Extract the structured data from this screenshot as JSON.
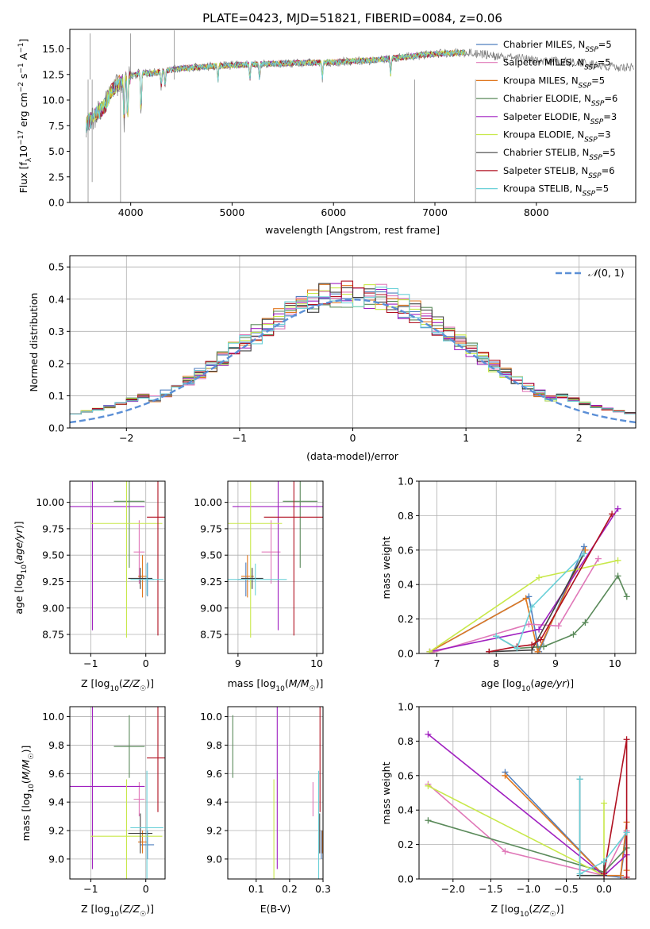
{
  "colors": {
    "Chabrier MILES": "#4f7fbf",
    "Salpeter MILES": "#e078b8",
    "Kroupa MILES": "#e07820",
    "Chabrier ELODIE": "#5a8a5a",
    "Salpeter ELODIE": "#a020c0",
    "Kroupa ELODIE": "#c8e84a",
    "Chabrier STELIB": "#404040",
    "Salpeter STELIB": "#b01020",
    "Kroupa STELIB": "#6ad0d8"
  },
  "chart_data": [
    {
      "id": "spectrum",
      "type": "line",
      "title": "PLATE=0423, MJD=51821, FIBERID=0084, z=0.06",
      "xlabel": "wavelength [Angstrom, rest frame]",
      "ylabel_parts": [
        "Flux [f",
        "λ",
        "10",
        "−17",
        " erg cm",
        "−2",
        " s",
        "−1",
        " A",
        "−1",
        "]"
      ],
      "xlim": [
        3400,
        8980
      ],
      "ylim": [
        0,
        16.9
      ],
      "xticks": [
        "4000",
        "5000",
        "6000",
        "7000",
        "8000"
      ],
      "yticks": [
        "0.0",
        "2.5",
        "5.0",
        "7.5",
        "10.0",
        "12.5",
        "15.0"
      ],
      "legend_position": "right",
      "series": [
        {
          "name": "Chabrier MILES",
          "nssp": "5"
        },
        {
          "name": "Salpeter MILES",
          "nssp": "5"
        },
        {
          "name": "Kroupa MILES",
          "nssp": "5"
        },
        {
          "name": "Chabrier ELODIE",
          "nssp": "6"
        },
        {
          "name": "Salpeter ELODIE",
          "nssp": "3"
        },
        {
          "name": "Kroupa ELODIE",
          "nssp": "3"
        },
        {
          "name": "Chabrier STELIB",
          "nssp": "5"
        },
        {
          "name": "Salpeter STELIB",
          "nssp": "6"
        },
        {
          "name": "Kroupa STELIB",
          "nssp": "5"
        }
      ],
      "continuum": {
        "x": [
          3550,
          3650,
          3750,
          3800,
          3900,
          4000,
          4100,
          4200,
          4300,
          4500,
          4800,
          5200,
          5600,
          6000,
          6400,
          6800,
          7000,
          7200,
          7400,
          7600,
          8000,
          8400,
          8800
        ],
        "y": [
          7.5,
          8.5,
          9.5,
          10.8,
          11.8,
          12.3,
          12.7,
          12.6,
          12.8,
          13.1,
          13.3,
          13.5,
          13.6,
          13.7,
          13.9,
          14.3,
          14.5,
          14.6,
          14.6,
          14.3,
          13.9,
          13.7,
          13.2
        ]
      }
    },
    {
      "id": "residuals",
      "type": "step",
      "xlabel": "(data-model)/error",
      "ylabel": "Normed distribution",
      "xlim": [
        -2.5,
        2.5
      ],
      "ylim": [
        0,
        0.535
      ],
      "xticks": [
        "−2",
        "−1",
        "0",
        "1",
        "2"
      ],
      "yticks": [
        "0.0",
        "0.1",
        "0.2",
        "0.3",
        "0.4",
        "0.5"
      ],
      "legend": "N(0,1)",
      "bin_width": 0.1,
      "normal_curve": {
        "mu": 0,
        "sigma": 1
      },
      "grid": true
    },
    {
      "id": "age-Z",
      "type": "errorbar",
      "xlabel": "Z [log10(Z/Z☉)]",
      "ylabel": "age  [log10(age/yr)]",
      "xlim": [
        -1.38,
        0.35
      ],
      "ylim": [
        8.57,
        10.2
      ],
      "xticks": [
        -1,
        0
      ],
      "yticks": [
        8.75,
        9.0,
        9.25,
        9.5,
        9.75,
        10.0
      ],
      "points": [
        {
          "series": "Chabrier MILES",
          "x": 0.03,
          "xe": 0.12,
          "y": 9.27,
          "ye": 0.16
        },
        {
          "series": "Salpeter MILES",
          "x": -0.12,
          "xe": 0.1,
          "y": 9.53,
          "ye": 0.3
        },
        {
          "series": "Kroupa MILES",
          "x": -0.06,
          "xe": 0.08,
          "y": 9.3,
          "ye": 0.2
        },
        {
          "series": "Chabrier ELODIE",
          "x": -0.3,
          "xe": 0.28,
          "y": 10.01,
          "ye": 0.63
        },
        {
          "series": "Salpeter ELODIE",
          "x": -0.97,
          "xe": 0.95,
          "y": 9.96,
          "ye": 1.17
        },
        {
          "series": "Kroupa ELODIE",
          "x": -0.35,
          "xe": 0.65,
          "y": 9.8,
          "ye": 1.08
        },
        {
          "series": "Chabrier STELIB",
          "x": -0.1,
          "xe": 0.22,
          "y": 9.28,
          "ye": 0.1
        },
        {
          "series": "Salpeter STELIB",
          "x": 0.22,
          "xe": 0.2,
          "y": 9.86,
          "ye": 1.12
        },
        {
          "series": "Kroupa STELIB",
          "x": 0.02,
          "xe": 0.3,
          "y": 9.27,
          "ye": 0.15
        }
      ]
    },
    {
      "id": "age-mass",
      "type": "errorbar",
      "xlabel": "mass [log10(M/M☉)]",
      "ylabel": "",
      "xlim": [
        8.87,
        10.08
      ],
      "ylim": [
        8.57,
        10.2
      ],
      "xticks": [
        9,
        10
      ],
      "yticks": [
        8.75,
        9.0,
        9.25,
        9.5,
        9.75,
        10.0
      ],
      "points": [
        {
          "series": "Chabrier MILES",
          "x": 9.1,
          "xe": 0.1,
          "y": 9.27,
          "ye": 0.16
        },
        {
          "series": "Salpeter MILES",
          "x": 9.42,
          "xe": 0.12,
          "y": 9.53,
          "ye": 0.3
        },
        {
          "series": "Kroupa MILES",
          "x": 9.12,
          "xe": 0.08,
          "y": 9.3,
          "ye": 0.2
        },
        {
          "series": "Chabrier ELODIE",
          "x": 9.79,
          "xe": 0.22,
          "y": 10.01,
          "ye": 0.63
        },
        {
          "series": "Salpeter ELODIE",
          "x": 9.51,
          "xe": 0.58,
          "y": 9.96,
          "ye": 1.17
        },
        {
          "series": "Kroupa ELODIE",
          "x": 9.16,
          "xe": 0.4,
          "y": 9.8,
          "ye": 1.08
        },
        {
          "series": "Chabrier STELIB",
          "x": 9.18,
          "xe": 0.14,
          "y": 9.28,
          "ye": 0.1
        },
        {
          "series": "Salpeter STELIB",
          "x": 9.71,
          "xe": 0.38,
          "y": 9.86,
          "ye": 1.12
        },
        {
          "series": "Kroupa STELIB",
          "x": 9.22,
          "xe": 0.4,
          "y": 9.27,
          "ye": 0.15
        }
      ]
    },
    {
      "id": "weight-age",
      "type": "line",
      "xlabel": "age  [log10(age/yr)]",
      "ylabel": "mass weight",
      "xlim": [
        6.7,
        10.35
      ],
      "ylim": [
        0,
        1.0
      ],
      "xticks": [
        7,
        8,
        9,
        10
      ],
      "yticks": [
        0.0,
        0.2,
        0.4,
        0.6,
        0.8,
        1.0
      ],
      "series": [
        {
          "name": "Chabrier MILES",
          "x": [
            6.88,
            8.55,
            8.72,
            9.48
          ],
          "y": [
            0.01,
            0.33,
            0.01,
            0.62
          ]
        },
        {
          "name": "Kroupa MILES",
          "x": [
            6.88,
            8.5,
            8.7,
            9.5
          ],
          "y": [
            0.01,
            0.32,
            0.01,
            0.6
          ]
        },
        {
          "name": "Salpeter MILES",
          "x": [
            6.88,
            8.55,
            9.05,
            9.72
          ],
          "y": [
            0.0,
            0.17,
            0.16,
            0.55
          ]
        },
        {
          "name": "Chabrier ELODIE",
          "x": [
            8.0,
            8.35,
            8.8,
            9.3,
            9.5,
            10.05,
            10.2
          ],
          "y": [
            0.1,
            0.03,
            0.04,
            0.11,
            0.18,
            0.45,
            0.33
          ]
        },
        {
          "name": "Salpeter ELODIE",
          "x": [
            6.88,
            8.72,
            10.05
          ],
          "y": [
            0.01,
            0.14,
            0.84
          ]
        },
        {
          "name": "Kroupa ELODIE",
          "x": [
            6.88,
            8.72,
            10.05
          ],
          "y": [
            0.01,
            0.44,
            0.54
          ]
        },
        {
          "name": "Chabrier STELIB",
          "x": [
            7.88,
            8.6,
            9.48
          ],
          "y": [
            0.01,
            0.02,
            0.58
          ]
        },
        {
          "name": "Salpeter STELIB",
          "x": [
            7.88,
            8.35,
            8.6,
            8.75,
            9.95
          ],
          "y": [
            0.01,
            0.04,
            0.05,
            0.08,
            0.81
          ]
        },
        {
          "name": "Kroupa STELIB",
          "x": [
            8.0,
            8.35,
            8.6,
            9.48
          ],
          "y": [
            0.1,
            0.03,
            0.27,
            0.58
          ]
        }
      ]
    },
    {
      "id": "mass-Z",
      "type": "errorbar",
      "xlabel": "Z [log10(Z/Z☉)]",
      "ylabel": "mass [log10(M/M☉)]",
      "xlim": [
        -1.38,
        0.35
      ],
      "ylim": [
        8.86,
        10.07
      ],
      "xticks": [
        -1,
        0
      ],
      "yticks": [
        9.0,
        9.2,
        9.4,
        9.6,
        9.8,
        10.0
      ],
      "points": [
        {
          "series": "Chabrier MILES",
          "x": 0.03,
          "xe": 0.12,
          "y": 9.1,
          "ye": 0.1
        },
        {
          "series": "Salpeter MILES",
          "x": -0.12,
          "xe": 0.1,
          "y": 9.42,
          "ye": 0.12
        },
        {
          "series": "Kroupa MILES",
          "x": -0.06,
          "xe": 0.08,
          "y": 9.12,
          "ye": 0.08
        },
        {
          "series": "Chabrier ELODIE",
          "x": -0.3,
          "xe": 0.28,
          "y": 9.79,
          "ye": 0.22
        },
        {
          "series": "Salpeter ELODIE",
          "x": -0.97,
          "xe": 0.95,
          "y": 9.51,
          "ye": 0.58
        },
        {
          "series": "Kroupa ELODIE",
          "x": -0.35,
          "xe": 0.65,
          "y": 9.16,
          "ye": 0.4
        },
        {
          "series": "Chabrier STELIB",
          "x": -0.1,
          "xe": 0.22,
          "y": 9.18,
          "ye": 0.14
        },
        {
          "series": "Salpeter STELIB",
          "x": 0.22,
          "xe": 0.2,
          "y": 9.71,
          "ye": 0.38
        },
        {
          "series": "Kroupa STELIB",
          "x": 0.02,
          "xe": 0.3,
          "y": 9.22,
          "ye": 0.4
        }
      ]
    },
    {
      "id": "mass-EBV",
      "type": "errorbar",
      "xlabel": "E(B-V)",
      "ylabel": "",
      "xlim": [
        0.015,
        0.3
      ],
      "ylim": [
        8.86,
        10.07
      ],
      "xticks": [
        0.1,
        0.2,
        0.3
      ],
      "yticks": [
        9.0,
        9.2,
        9.4,
        9.6,
        9.8,
        10.0
      ],
      "points": [
        {
          "series": "Chabrier MILES",
          "x": 0.295,
          "xe": 0,
          "y": 9.1,
          "ye": 0.1
        },
        {
          "series": "Salpeter MILES",
          "x": 0.27,
          "xe": 0,
          "y": 9.42,
          "ye": 0.12
        },
        {
          "series": "Kroupa MILES",
          "x": 0.298,
          "xe": 0,
          "y": 9.12,
          "ye": 0.08
        },
        {
          "series": "Chabrier ELODIE",
          "x": 0.03,
          "xe": 0,
          "y": 9.79,
          "ye": 0.22
        },
        {
          "series": "Salpeter ELODIE",
          "x": 0.163,
          "xe": 0,
          "y": 9.51,
          "ye": 0.58
        },
        {
          "series": "Kroupa ELODIE",
          "x": 0.153,
          "xe": 0,
          "y": 9.16,
          "ye": 0.4
        },
        {
          "series": "Chabrier STELIB",
          "x": 0.29,
          "xe": 0,
          "y": 9.18,
          "ye": 0.14
        },
        {
          "series": "Salpeter STELIB",
          "x": 0.291,
          "xe": 0,
          "y": 9.71,
          "ye": 0.38
        },
        {
          "series": "Kroupa STELIB",
          "x": 0.287,
          "xe": 0,
          "y": 9.22,
          "ye": 0.4
        }
      ]
    },
    {
      "id": "weight-Z",
      "type": "line",
      "xlabel": "Z [log10(Z/Z☉)]",
      "ylabel": "mass weight",
      "xlim": [
        -2.45,
        0.42
      ],
      "ylim": [
        0,
        1.0
      ],
      "xticks": [
        -2.0,
        -1.5,
        -1.0,
        -0.5,
        0.0
      ],
      "yticks": [
        0.0,
        0.2,
        0.4,
        0.6,
        0.8,
        1.0
      ],
      "series": [
        {
          "name": "Chabrier MILES",
          "x": [
            -1.31,
            0.0,
            0.22,
            0.3
          ],
          "y": [
            0.62,
            0.02,
            0.01,
            0.27
          ]
        },
        {
          "name": "Kroupa MILES",
          "x": [
            -1.31,
            0.0,
            0.22,
            0.3,
            0.3
          ],
          "y": [
            0.6,
            0.02,
            0.02,
            0.33,
            0.05
          ]
        },
        {
          "name": "Salpeter MILES",
          "x": [
            -2.33,
            -1.31,
            0.0,
            0.3
          ],
          "y": [
            0.55,
            0.16,
            0.02,
            0.28
          ]
        },
        {
          "name": "Chabrier ELODIE",
          "x": [
            -2.33,
            0.0,
            0.3
          ],
          "y": [
            0.34,
            0.04,
            0.18
          ]
        },
        {
          "name": "Salpeter ELODIE",
          "x": [
            -2.33,
            0.0,
            0.3
          ],
          "y": [
            0.84,
            0.02,
            0.14
          ]
        },
        {
          "name": "Kroupa ELODIE",
          "x": [
            -2.33,
            0.0,
            0.0
          ],
          "y": [
            0.54,
            0.02,
            0.44
          ]
        },
        {
          "name": "Chabrier STELIB",
          "x": [
            -0.32,
            -0.32,
            0.0,
            0.0
          ],
          "y": [
            0.58,
            0.02,
            0.02,
            0.1
          ]
        },
        {
          "name": "Salpeter STELIB",
          "x": [
            0.0,
            0.3,
            0.3
          ],
          "y": [
            0.03,
            0.81,
            0.01
          ]
        },
        {
          "name": "Kroupa STELIB",
          "x": [
            -0.32,
            -0.32,
            0.0,
            0.3
          ],
          "y": [
            0.58,
            0.03,
            0.1,
            0.27
          ]
        }
      ]
    }
  ]
}
